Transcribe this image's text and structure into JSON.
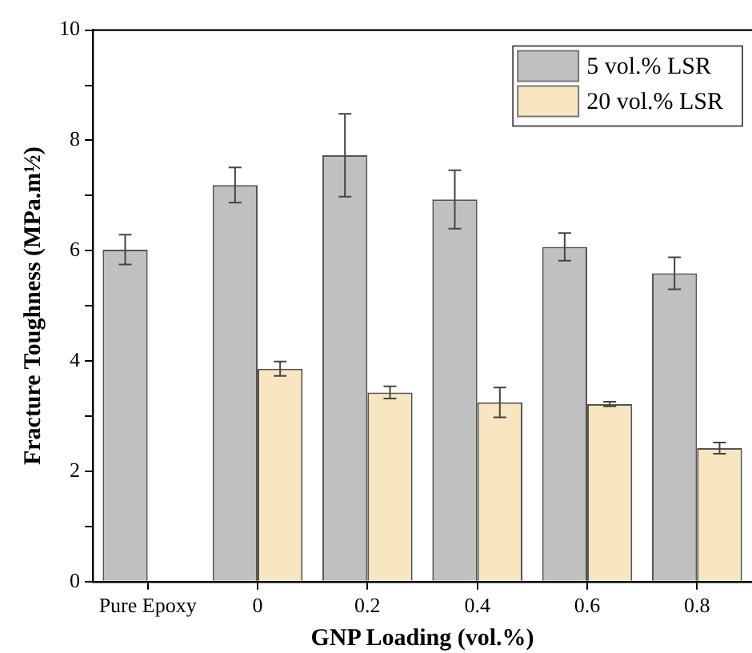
{
  "chart_data": {
    "type": "bar",
    "xlabel": "GNP Loading (vol.%)",
    "ylabel": "Fracture Toughness (MPa.m½)",
    "categories": [
      "Pure Epoxy",
      "0",
      "0.2",
      "0.4",
      "0.6",
      "0.8"
    ],
    "series": [
      {
        "name": "5 vol.% LSR",
        "color": "#c0c0c0",
        "values": [
          6.02,
          7.19,
          7.73,
          6.93,
          6.07,
          5.59
        ],
        "errors": [
          0.27,
          0.32,
          0.75,
          0.53,
          0.25,
          0.29
        ]
      },
      {
        "name": "20 vol.% LSR",
        "color": "#f8e6c0",
        "values": [
          null,
          3.86,
          3.43,
          3.25,
          3.22,
          2.42
        ],
        "errors": [
          null,
          0.13,
          0.11,
          0.27,
          0.04,
          0.1
        ]
      }
    ],
    "ylim": [
      0,
      10
    ],
    "yticks": [
      0,
      {
        "value": 1,
        "label": null
      },
      2,
      {
        "value": 3,
        "label": null
      },
      4,
      {
        "value": 5,
        "label": null
      },
      6,
      {
        "value": 7,
        "label": null
      },
      8,
      {
        "value": 9,
        "label": null
      },
      10
    ],
    "legend": "top right",
    "grid": false
  }
}
